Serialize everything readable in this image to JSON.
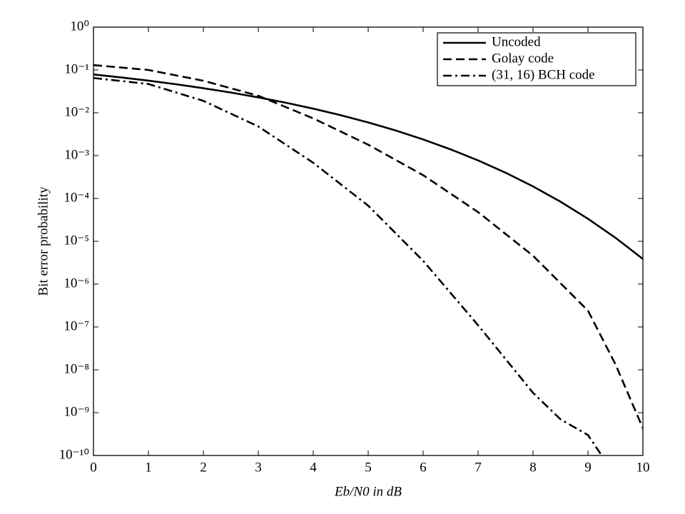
{
  "chart_data": {
    "type": "line",
    "xlabel": "Eb/N0 in dB",
    "ylabel": "Bit error probability",
    "xlim": [
      0,
      10
    ],
    "xticks": [
      0,
      1,
      2,
      3,
      4,
      5,
      6,
      7,
      8,
      9,
      10
    ],
    "ylim": [
      1e-10,
      1
    ],
    "yscale": "log",
    "yticks": [
      {
        "value": 1,
        "label": "10⁰"
      },
      {
        "value": 0.1,
        "label": "10⁻¹"
      },
      {
        "value": 0.01,
        "label": "10⁻²"
      },
      {
        "value": 0.001,
        "label": "10⁻³"
      },
      {
        "value": 0.0001,
        "label": "10⁻⁴"
      },
      {
        "value": 1e-05,
        "label": "10⁻⁵"
      },
      {
        "value": 1e-06,
        "label": "10⁻⁶"
      },
      {
        "value": 1e-07,
        "label": "10⁻⁷"
      },
      {
        "value": 1e-08,
        "label": "10⁻⁸"
      },
      {
        "value": 1e-09,
        "label": "10⁻⁹"
      },
      {
        "value": 1e-10,
        "label": "10⁻¹⁰"
      }
    ],
    "legend": "upper right",
    "series": [
      {
        "name": "Uncoded",
        "color": "#000000",
        "dash": "solid",
        "x": [
          0,
          0.5,
          1,
          1.5,
          2,
          2.5,
          3,
          3.5,
          4,
          4.5,
          5,
          5.5,
          6,
          6.5,
          7,
          7.5,
          8,
          8.5,
          9,
          9.5,
          10
        ],
        "values": [
          0.0786,
          0.0671,
          0.0563,
          0.0464,
          0.0375,
          0.0297,
          0.0229,
          0.0172,
          0.0125,
          0.0088,
          0.00595,
          0.00386,
          0.00239,
          0.0014,
          0.000773,
          0.0004,
          0.000191,
          8.4e-05,
          3.36e-05,
          1.21e-05,
          3.87e-06
        ]
      },
      {
        "name": "Golay code",
        "color": "#000000",
        "dash": "dashed",
        "x": [
          0,
          1,
          2,
          3,
          4,
          5,
          6,
          7,
          8,
          9,
          9.5,
          10
        ],
        "values": [
          0.13,
          0.1,
          0.056,
          0.025,
          0.0074,
          0.0018,
          0.00035,
          4.8e-05,
          4.6e-06,
          2.4e-07,
          1.35e-08,
          4.3e-10
        ]
      },
      {
        "name": "(31, 16) BCH code",
        "color": "#000000",
        "dash": "dashdot",
        "x": [
          0,
          1,
          2,
          3,
          4,
          5,
          6,
          7,
          8,
          8.5,
          9,
          9.25
        ],
        "values": [
          0.065,
          0.047,
          0.019,
          0.0048,
          0.00068,
          6.8e-05,
          3.5e-06,
          1.1e-07,
          2.9e-09,
          7e-10,
          3e-10,
          1e-10
        ]
      }
    ]
  }
}
